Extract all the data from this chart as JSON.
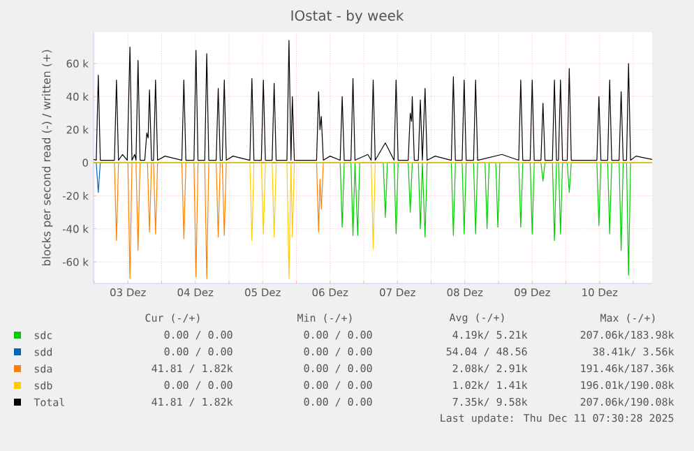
{
  "chart_data": {
    "type": "line",
    "title": "IOstat - by week",
    "ylabel": "blocks per second read (-) / written (+)",
    "xlim": [
      2.49,
      10.78
    ],
    "xticks": [
      {
        "value": 2.5,
        "label": null
      },
      {
        "value": 3,
        "label": "03 Dez"
      },
      {
        "value": 3.5,
        "label": null
      },
      {
        "value": 4,
        "label": "04 Dez"
      },
      {
        "value": 4.5,
        "label": null
      },
      {
        "value": 5,
        "label": "05 Dez"
      },
      {
        "value": 5.5,
        "label": null
      },
      {
        "value": 6,
        "label": "06 Dez"
      },
      {
        "value": 6.5,
        "label": null
      },
      {
        "value": 7,
        "label": "07 Dez"
      },
      {
        "value": 7.5,
        "label": null
      },
      {
        "value": 8,
        "label": "08 Dez"
      },
      {
        "value": 8.5,
        "label": null
      },
      {
        "value": 9,
        "label": "09 Dez"
      },
      {
        "value": 9.5,
        "label": null
      },
      {
        "value": 10,
        "label": "10 Dez"
      },
      {
        "value": 10.5,
        "label": null
      }
    ],
    "ylim": [
      -73000,
      79000
    ],
    "yticks": [
      {
        "value": -60000,
        "label": "-60 k"
      },
      {
        "value": -40000,
        "label": "-40 k"
      },
      {
        "value": -20000,
        "label": "-20 k"
      },
      0,
      {
        "value": 20000,
        "label": "20 k"
      },
      {
        "value": 40000,
        "label": "40 k"
      },
      {
        "value": 60000,
        "label": "60 k"
      }
    ],
    "grid": true,
    "legend": "bottom",
    "series": [
      {
        "name": "sdc",
        "color": "#00cc00",
        "x": [
          2.49,
          6.15,
          6.18,
          6.21,
          6.31,
          6.34,
          6.37,
          6.41,
          6.44,
          6.79,
          6.82,
          6.85,
          6.95,
          6.98,
          7.01,
          7.16,
          7.19,
          7.22,
          7.31,
          7.34,
          7.37,
          7.41,
          7.44,
          7.8,
          7.83,
          7.86,
          7.96,
          7.99,
          8.02,
          8.13,
          8.16,
          8.19,
          8.3,
          8.33,
          8.36,
          8.46,
          8.49,
          8.52,
          8.8,
          8.83,
          8.86,
          8.97,
          9.0,
          9.03,
          9.13,
          9.16,
          9.19,
          9.3,
          9.33,
          9.36,
          9.39,
          9.42,
          9.45,
          9.52,
          9.55,
          9.58,
          9.96,
          9.99,
          10.02,
          10.12,
          10.15,
          10.18,
          10.29,
          10.32,
          10.35,
          10.4,
          10.43,
          10.46,
          10.78
        ],
        "values": [
          0,
          0,
          -39000,
          0,
          0,
          -44000,
          0,
          -44000,
          0,
          0,
          -33000,
          0,
          0,
          -43000,
          0,
          0,
          -30000,
          0,
          0,
          -40000,
          0,
          -45000,
          0,
          0,
          -44000,
          0,
          0,
          -43000,
          0,
          0,
          -43000,
          0,
          0,
          -40000,
          0,
          0,
          -39000,
          0,
          0,
          -39000,
          0,
          0,
          -43000,
          0,
          0,
          -11000,
          0,
          0,
          -47000,
          0,
          0,
          -43000,
          0,
          0,
          -18000,
          0,
          0,
          -38000,
          0,
          0,
          -43000,
          0,
          0,
          -53000,
          0,
          0,
          -68000,
          0,
          0
        ]
      },
      {
        "name": "sdd",
        "color": "#0066b3",
        "x": [
          2.49,
          2.53,
          2.56,
          2.59,
          2.62
        ],
        "values": [
          0,
          0,
          -18000,
          0,
          0
        ]
      },
      {
        "name": "sda",
        "color": "#ff8000",
        "x": [
          2.49,
          2.8,
          2.83,
          2.86,
          3.0,
          3.03,
          3.06,
          3.12,
          3.15,
          3.18,
          3.29,
          3.32,
          3.35,
          3.38,
          3.41,
          3.44,
          3.8,
          3.83,
          3.86,
          3.98,
          4.01,
          4.04,
          4.14,
          4.17,
          4.2,
          4.31,
          4.34,
          4.37,
          4.4,
          4.43,
          4.46,
          5.8,
          5.83,
          5.85,
          5.87,
          5.9,
          10.78
        ],
        "values": [
          0,
          0,
          -47000,
          0,
          0,
          -70000,
          0,
          0,
          -53000,
          0,
          0,
          -42000,
          0,
          0,
          -43000,
          0,
          0,
          -46000,
          0,
          0,
          -69000,
          0,
          0,
          -70000,
          0,
          0,
          -45000,
          0,
          0,
          -44000,
          0,
          0,
          -42000,
          -10000,
          -28000,
          0,
          0
        ]
      },
      {
        "name": "sdb",
        "color": "#ffcc00",
        "x": [
          2.49,
          4.81,
          4.84,
          4.87,
          4.98,
          5.01,
          5.04,
          5.14,
          5.17,
          5.2,
          5.36,
          5.39,
          5.42,
          5.44,
          5.47,
          6.61,
          6.64,
          6.67,
          10.78
        ],
        "values": [
          0,
          0,
          -47000,
          0,
          0,
          -43000,
          0,
          0,
          -45000,
          0,
          0,
          -70000,
          0,
          -45000,
          0,
          0,
          -52000,
          0,
          0
        ]
      },
      {
        "name": "Total",
        "color": "#000000",
        "x": [
          2.49,
          2.53,
          2.56,
          2.59,
          2.8,
          2.83,
          2.86,
          2.92,
          2.99,
          3.03,
          3.06,
          3.1,
          3.12,
          3.15,
          3.18,
          3.25,
          3.28,
          3.3,
          3.32,
          3.35,
          3.38,
          3.41,
          3.44,
          3.55,
          3.8,
          3.83,
          3.86,
          3.98,
          4.01,
          4.04,
          4.14,
          4.17,
          4.2,
          4.31,
          4.34,
          4.37,
          4.4,
          4.43,
          4.46,
          4.56,
          4.81,
          4.84,
          4.87,
          4.98,
          5.01,
          5.04,
          5.14,
          5.17,
          5.2,
          5.36,
          5.39,
          5.42,
          5.44,
          5.47,
          5.8,
          5.83,
          5.85,
          5.87,
          5.9,
          6.0,
          6.15,
          6.18,
          6.21,
          6.31,
          6.34,
          6.37,
          6.56,
          6.61,
          6.64,
          6.67,
          6.82,
          6.95,
          6.98,
          7.01,
          7.16,
          7.19,
          7.21,
          7.22,
          7.25,
          7.31,
          7.34,
          7.37,
          7.41,
          7.44,
          7.56,
          7.8,
          7.83,
          7.86,
          7.96,
          7.99,
          8.02,
          8.13,
          8.16,
          8.19,
          8.55,
          8.8,
          8.83,
          8.86,
          8.97,
          9.0,
          9.03,
          9.13,
          9.16,
          9.19,
          9.3,
          9.33,
          9.36,
          9.39,
          9.42,
          9.45,
          9.52,
          9.55,
          9.58,
          9.96,
          9.99,
          10.02,
          10.12,
          10.15,
          10.18,
          10.29,
          10.32,
          10.35,
          10.4,
          10.43,
          10.46,
          10.54,
          10.78
        ],
        "values": [
          2000,
          1500,
          53000,
          1500,
          1500,
          50000,
          1500,
          5000,
          1500,
          70000,
          1500,
          5000,
          1500,
          62000,
          1500,
          1500,
          18000,
          15000,
          44000,
          1500,
          1500,
          50000,
          1500,
          4000,
          1500,
          50000,
          1500,
          1500,
          68000,
          1500,
          1500,
          66000,
          1500,
          1500,
          45000,
          1500,
          1500,
          50000,
          1500,
          4000,
          1500,
          51000,
          1500,
          1500,
          50000,
          1500,
          1500,
          48000,
          1500,
          1500,
          74000,
          1500,
          40000,
          1500,
          1500,
          43000,
          20000,
          28000,
          1500,
          4000,
          1500,
          40000,
          1500,
          1500,
          51000,
          1500,
          5000,
          1500,
          50000,
          1500,
          12000,
          1500,
          50000,
          1500,
          1500,
          30000,
          25000,
          40000,
          1500,
          1500,
          38000,
          1500,
          45000,
          1500,
          4000,
          1500,
          52000,
          1500,
          1500,
          50000,
          1500,
          1500,
          50000,
          1500,
          5000,
          1500,
          50000,
          1500,
          1500,
          50000,
          1500,
          1500,
          36000,
          1500,
          1500,
          50000,
          1500,
          1500,
          50000,
          1500,
          1500,
          57000,
          1500,
          1500,
          40000,
          1500,
          1500,
          50000,
          1500,
          1500,
          43000,
          1500,
          1500,
          60000,
          1500,
          4000,
          2000
        ]
      }
    ],
    "annotations": [
      "Cur (-/+)",
      "Min (-/+)",
      "Avg (-/+)",
      "Max (-/+)",
      "0.00 / 0.00",
      "0.00 / 0.00",
      "4.19k/ 5.21k",
      "207.06k/183.98k",
      "0.00 / 0.00",
      "0.00 / 0.00",
      "54.04 / 48.56",
      "38.41k/ 3.56k",
      "41.81 / 1.82k",
      "0.00 / 0.00",
      "2.08k/ 2.91k",
      "191.46k/187.36k",
      "0.00 / 0.00",
      "0.00 / 0.00",
      "1.02k/ 1.41k",
      "196.01k/190.08k",
      "41.81 / 1.82k",
      "0.00 / 0.00",
      "7.35k/ 9.58k",
      "207.06k/190.08k",
      "Last update: Thu Dec 11 07:30:28 2025"
    ]
  }
}
